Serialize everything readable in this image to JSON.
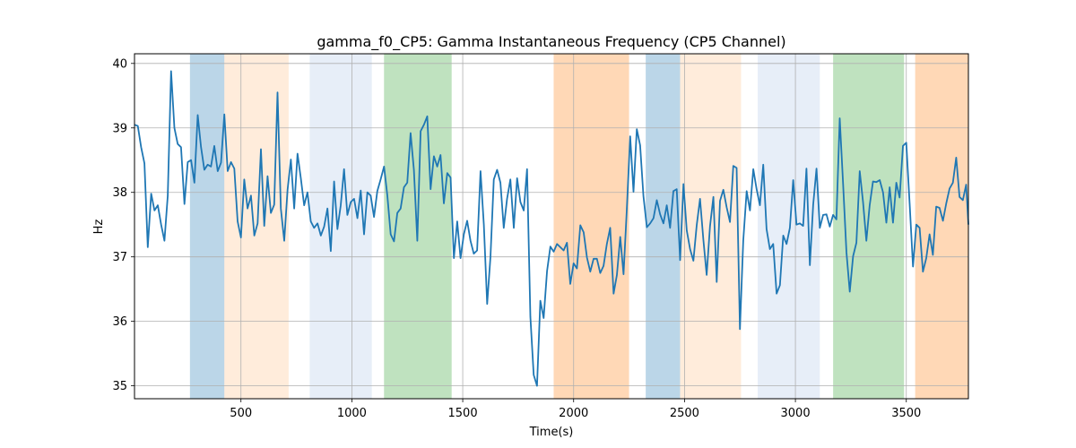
{
  "chart_data": {
    "type": "line",
    "title": "gamma_f0_CP5: Gamma Instantaneous Frequency (CP5 Channel)",
    "xlabel": "Time(s)",
    "ylabel": "Hz",
    "xlim": [
      20,
      3780
    ],
    "ylim": [
      34.8,
      40.15
    ],
    "xticks": [
      500,
      1000,
      1500,
      2000,
      2500,
      3000,
      3500
    ],
    "yticks": [
      35,
      36,
      37,
      38,
      39,
      40
    ],
    "grid": true,
    "line_color": "#1f77b4",
    "bands": [
      {
        "x0": 270,
        "x1": 425,
        "color": "#1f77b4",
        "opacity": 0.3
      },
      {
        "x0": 425,
        "x1": 715,
        "color": "#ff7f0e",
        "opacity": 0.15
      },
      {
        "x0": 810,
        "x1": 1090,
        "color": "#aec7e8",
        "opacity": 0.3
      },
      {
        "x0": 1145,
        "x1": 1450,
        "color": "#2ca02c",
        "opacity": 0.3
      },
      {
        "x0": 1910,
        "x1": 2250,
        "color": "#ff7f0e",
        "opacity": 0.3
      },
      {
        "x0": 2325,
        "x1": 2480,
        "color": "#1f77b4",
        "opacity": 0.3
      },
      {
        "x0": 2480,
        "x1": 2755,
        "color": "#ff7f0e",
        "opacity": 0.15
      },
      {
        "x0": 2830,
        "x1": 3110,
        "color": "#aec7e8",
        "opacity": 0.3
      },
      {
        "x0": 3170,
        "x1": 3490,
        "color": "#2ca02c",
        "opacity": 0.3
      },
      {
        "x0": 3540,
        "x1": 3780,
        "color": "#ff7f0e",
        "opacity": 0.3
      }
    ],
    "series": [
      {
        "x": [
          20,
          35,
          50,
          65,
          80,
          95,
          110,
          125,
          140,
          155,
          170,
          185,
          200,
          215,
          230,
          245,
          260,
          275,
          290,
          305,
          320,
          335,
          350,
          365,
          380,
          395,
          410,
          425,
          440,
          455,
          470,
          485,
          500,
          515,
          530,
          545,
          560,
          575,
          590,
          605,
          620,
          635,
          650,
          665,
          680,
          695,
          710,
          725,
          740,
          755,
          770,
          785,
          800,
          815,
          830,
          845,
          860,
          875,
          890,
          905,
          920,
          935,
          950,
          965,
          980,
          995,
          1010,
          1025,
          1040,
          1055,
          1070,
          1085,
          1100,
          1115,
          1130,
          1145,
          1160,
          1175,
          1190,
          1205,
          1220,
          1235,
          1250,
          1265,
          1280,
          1295,
          1310,
          1325,
          1340,
          1355,
          1370,
          1385,
          1400,
          1415,
          1430,
          1445,
          1460,
          1475,
          1490,
          1505,
          1520,
          1535,
          1550,
          1565,
          1580,
          1595,
          1610,
          1625,
          1640,
          1655,
          1670,
          1685,
          1700,
          1715,
          1730,
          1745,
          1760,
          1775,
          1790,
          1805,
          1820,
          1835,
          1850,
          1865,
          1880,
          1895,
          1910,
          1925,
          1940,
          1955,
          1970,
          1985,
          2000,
          2015,
          2030,
          2045,
          2060,
          2075,
          2090,
          2105,
          2120,
          2135,
          2150,
          2165,
          2180,
          2195,
          2210,
          2225,
          2240,
          2255,
          2270,
          2285,
          2300,
          2315,
          2330,
          2345,
          2360,
          2375,
          2390,
          2405,
          2420,
          2435,
          2450,
          2465,
          2480,
          2495,
          2510,
          2525,
          2540,
          2555,
          2570,
          2585,
          2600,
          2615,
          2630,
          2645,
          2660,
          2675,
          2690,
          2705,
          2720,
          2735,
          2750,
          2765,
          2780,
          2795,
          2810,
          2825,
          2840,
          2855,
          2870,
          2885,
          2900,
          2915,
          2930,
          2945,
          2960,
          2975,
          2990,
          3005,
          3020,
          3035,
          3050,
          3065,
          3080,
          3095,
          3110,
          3125,
          3140,
          3155,
          3170,
          3185,
          3200,
          3215,
          3230,
          3245,
          3260,
          3275,
          3290,
          3305,
          3320,
          3335,
          3350,
          3365,
          3380,
          3395,
          3410,
          3425,
          3440,
          3455,
          3470,
          3485,
          3500,
          3515,
          3530,
          3545,
          3560,
          3575,
          3590,
          3605,
          3620,
          3635,
          3650,
          3665,
          3680,
          3695,
          3710,
          3725,
          3740,
          3755,
          3770,
          3780
        ],
        "y": [
          39.05,
          39.03,
          38.7,
          38.45,
          37.15,
          37.98,
          37.72,
          37.8,
          37.5,
          37.25,
          37.95,
          39.88,
          39.0,
          38.75,
          38.7,
          37.82,
          38.47,
          38.5,
          38.15,
          39.2,
          38.7,
          38.35,
          38.43,
          38.4,
          38.72,
          38.33,
          38.46,
          39.21,
          38.33,
          38.47,
          38.37,
          37.55,
          37.3,
          38.2,
          37.75,
          37.95,
          37.33,
          37.52,
          38.67,
          37.48,
          38.25,
          37.68,
          37.81,
          39.55,
          37.75,
          37.25,
          38.04,
          38.51,
          37.75,
          38.6,
          38.22,
          37.8,
          38.0,
          37.55,
          37.45,
          37.52,
          37.33,
          37.47,
          37.75,
          37.09,
          38.17,
          37.43,
          37.8,
          38.36,
          37.65,
          37.85,
          37.9,
          37.6,
          38.03,
          37.35,
          38.0,
          37.95,
          37.62,
          38.02,
          38.2,
          38.4,
          37.95,
          37.35,
          37.24,
          37.68,
          37.75,
          38.08,
          38.15,
          38.92,
          38.35,
          37.25,
          38.95,
          39.05,
          39.18,
          38.05,
          38.56,
          38.4,
          38.58,
          37.83,
          38.3,
          38.23,
          36.98,
          37.55,
          36.98,
          37.35,
          37.56,
          37.25,
          37.05,
          37.1,
          38.33,
          37.5,
          36.27,
          37.0,
          38.2,
          38.35,
          38.15,
          37.45,
          37.9,
          38.2,
          37.45,
          38.22,
          37.85,
          37.72,
          38.36,
          36.07,
          35.17,
          35.0,
          36.32,
          36.05,
          36.78,
          37.16,
          37.08,
          37.2,
          37.15,
          37.1,
          37.22,
          36.58,
          36.9,
          36.82,
          37.49,
          37.38,
          36.99,
          36.77,
          36.97,
          36.97,
          36.75,
          36.86,
          37.2,
          37.45,
          36.43,
          36.72,
          37.31,
          36.73,
          37.75,
          38.87,
          38.01,
          38.98,
          38.73,
          37.94,
          37.46,
          37.52,
          37.6,
          37.88,
          37.66,
          37.52,
          37.8,
          37.45,
          38.02,
          38.05,
          36.95,
          38.13,
          37.41,
          37.12,
          36.94,
          37.49,
          37.9,
          37.27,
          36.72,
          37.47,
          37.93,
          36.61,
          37.87,
          38.04,
          37.77,
          37.54,
          38.41,
          38.38,
          35.88,
          37.25,
          38.02,
          37.72,
          38.36,
          38.05,
          37.8,
          38.43,
          37.43,
          37.12,
          37.2,
          36.43,
          36.56,
          37.33,
          37.2,
          37.45,
          38.19,
          37.5,
          37.52,
          37.48,
          38.37,
          36.87,
          37.81,
          38.37,
          37.45,
          37.65,
          37.66,
          37.47,
          37.65,
          37.58,
          39.15,
          38.12,
          37.07,
          36.46,
          37.01,
          37.22,
          38.33,
          37.85,
          37.25,
          37.8,
          38.17,
          38.16,
          38.19,
          38.0,
          37.53,
          38.08,
          37.53,
          38.15,
          37.92,
          38.72,
          38.77,
          37.82,
          36.85,
          37.5,
          37.45,
          36.77,
          36.98,
          37.35,
          37.03,
          37.78,
          37.76,
          37.56,
          37.83,
          38.06,
          38.15,
          38.54,
          37.93,
          37.88,
          38.12,
          37.5
        ]
      }
    ]
  }
}
